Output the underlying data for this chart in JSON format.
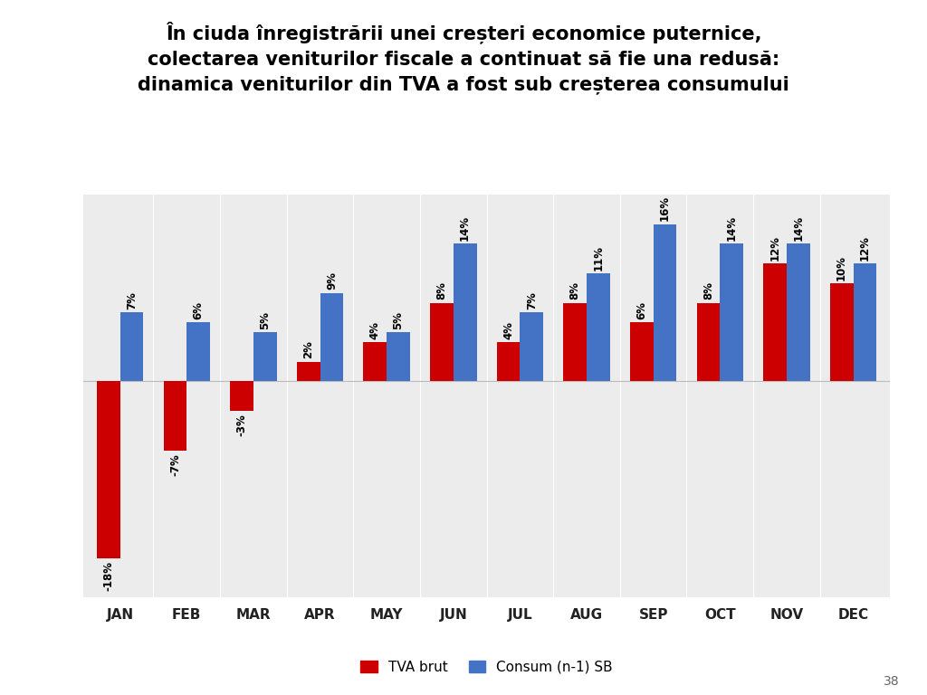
{
  "title_line1": "În ciuda înregistrării unei creșteri economice puternice,",
  "title_line2": "colectarea veniturilor fiscale a continuat să fie una redusă:",
  "title_line3": "dinamica veniturilor din TVA a fost sub creșterea consumului",
  "months": [
    "JAN",
    "FEB",
    "MAR",
    "APR",
    "MAY",
    "JUN",
    "JUL",
    "AUG",
    "SEP",
    "OCT",
    "NOV",
    "DEC"
  ],
  "tva_brut": [
    -18,
    -7,
    -3,
    2,
    4,
    8,
    4,
    8,
    6,
    8,
    12,
    10
  ],
  "consum": [
    7,
    6,
    5,
    9,
    5,
    14,
    7,
    11,
    16,
    14,
    14,
    12
  ],
  "tva_color": "#cc0000",
  "consum_color": "#4472c4",
  "plot_bg": "#ececec",
  "legend_tva": "TVA brut",
  "legend_consum": "Consum (n-1) SB",
  "page_number": "38",
  "bar_width": 0.35,
  "ylim_min": -22,
  "ylim_max": 19
}
